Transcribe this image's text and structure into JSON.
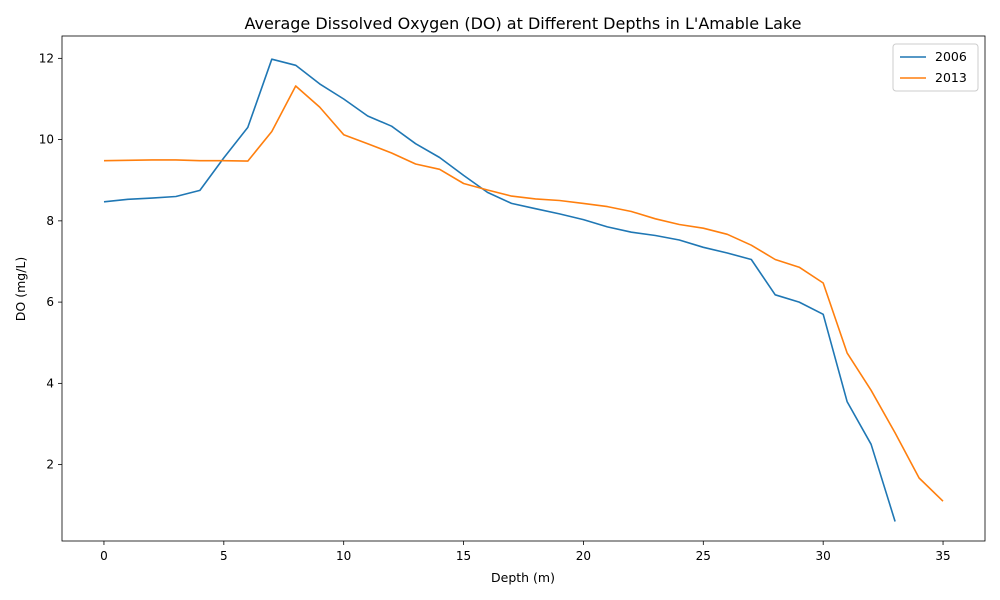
{
  "chart_data": {
    "type": "line",
    "title": "Average Dissolved Oxygen (DO) at Different Depths in L'Amable Lake",
    "xlabel": "Depth (m)",
    "ylabel": "DO (mg/L)",
    "xlim": [
      -1.75,
      36.75
    ],
    "ylim": [
      0.12,
      12.55
    ],
    "xticks": [
      0,
      5,
      10,
      15,
      20,
      25,
      30,
      35
    ],
    "yticks": [
      2,
      4,
      6,
      8,
      10,
      12
    ],
    "grid": false,
    "legend_position": "top-right",
    "series": [
      {
        "name": "2006",
        "color": "#1f77b4",
        "x": [
          0,
          1,
          2,
          3,
          4,
          5,
          6,
          7,
          8,
          9,
          10,
          11,
          12,
          13,
          14,
          15,
          16,
          17,
          18,
          19,
          20,
          21,
          22,
          23,
          24,
          25,
          26,
          27,
          28,
          29,
          30,
          31,
          32,
          33
        ],
        "values": [
          8.47,
          8.53,
          8.56,
          8.6,
          8.75,
          9.55,
          10.3,
          11.98,
          11.83,
          11.37,
          11.0,
          10.58,
          10.33,
          9.9,
          9.56,
          9.12,
          8.7,
          8.43,
          8.3,
          8.17,
          8.03,
          7.85,
          7.72,
          7.64,
          7.53,
          7.35,
          7.21,
          7.05,
          6.18,
          6.0,
          5.7,
          3.55,
          2.5,
          0.6
        ]
      },
      {
        "name": "2013",
        "color": "#ff7f0e",
        "x": [
          0,
          1,
          2,
          3,
          4,
          5,
          6,
          7,
          8,
          9,
          10,
          11,
          12,
          13,
          14,
          15,
          16,
          17,
          18,
          19,
          20,
          21,
          22,
          23,
          24,
          25,
          26,
          27,
          28,
          29,
          30,
          31,
          32,
          33,
          34,
          35
        ],
        "values": [
          9.48,
          9.49,
          9.5,
          9.5,
          9.48,
          9.48,
          9.47,
          10.2,
          11.32,
          10.8,
          10.12,
          9.9,
          9.67,
          9.4,
          9.27,
          8.92,
          8.76,
          8.61,
          8.54,
          8.5,
          8.43,
          8.35,
          8.23,
          8.05,
          7.91,
          7.82,
          7.67,
          7.4,
          7.05,
          6.86,
          6.47,
          4.75,
          3.83,
          2.78,
          1.67,
          1.1
        ]
      }
    ]
  }
}
